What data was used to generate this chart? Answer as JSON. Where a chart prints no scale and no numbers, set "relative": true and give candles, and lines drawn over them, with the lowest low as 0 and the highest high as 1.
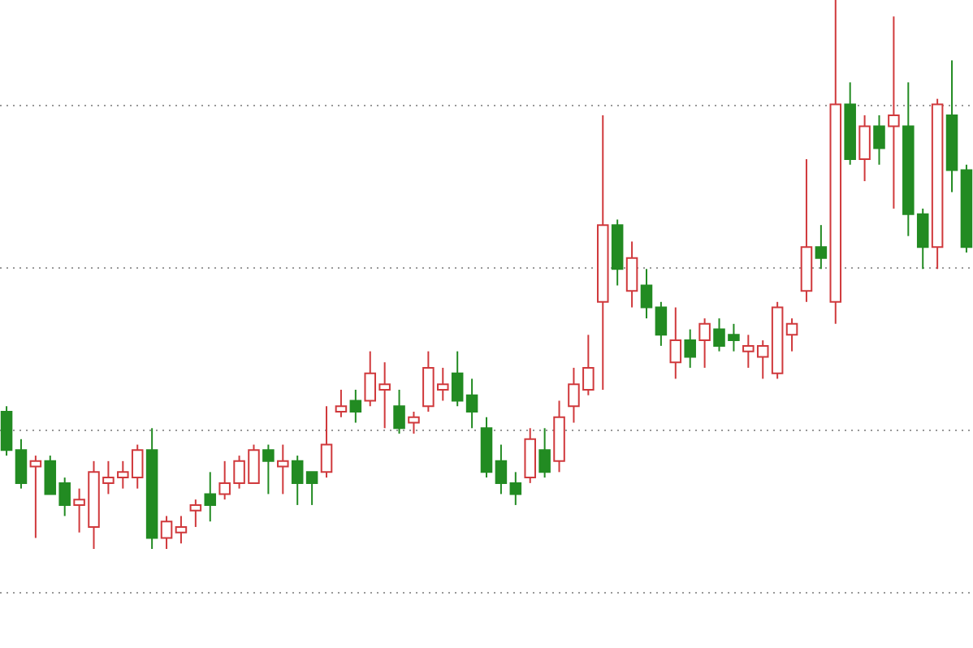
{
  "chart_data": {
    "type": "candlestick",
    "relative": true,
    "grid": "y",
    "categories": [
      null,
      null,
      null,
      null,
      null,
      null,
      null,
      null,
      null,
      null,
      null,
      null,
      null,
      null,
      null,
      null,
      null,
      null,
      null,
      null,
      null,
      null,
      null,
      null,
      null,
      null,
      null,
      null,
      null,
      null,
      null,
      null,
      null,
      null,
      null,
      null,
      null,
      null,
      null,
      null,
      null,
      null,
      null,
      null,
      null,
      null,
      null,
      null,
      null,
      null,
      null,
      null,
      null,
      null,
      null,
      null,
      null,
      null,
      null,
      null,
      null,
      null,
      null,
      null,
      null,
      null,
      null
    ],
    "ohlc": [
      [
        0.25,
        0.26,
        0.17,
        0.18
      ],
      [
        0.18,
        0.2,
        0.11,
        0.12
      ],
      [
        0.15,
        0.17,
        0.02,
        0.16
      ],
      [
        0.16,
        0.17,
        0.1,
        0.1
      ],
      [
        0.12,
        0.13,
        0.06,
        0.08
      ],
      [
        0.08,
        0.11,
        0.03,
        0.09
      ],
      [
        0.04,
        0.16,
        0,
        0.14
      ],
      [
        0.12,
        0.16,
        0.1,
        0.13
      ],
      [
        0.13,
        0.16,
        0.11,
        0.14
      ],
      [
        0.13,
        0.19,
        0.11,
        0.18
      ],
      [
        0.18,
        0.22,
        0,
        0.02
      ],
      [
        0.02,
        0.06,
        0,
        0.05
      ],
      [
        0.03,
        0.06,
        0.01,
        0.04
      ],
      [
        0.07,
        0.09,
        0.04,
        0.08
      ],
      [
        0.1,
        0.14,
        0.05,
        0.08
      ],
      [
        0.1,
        0.16,
        0.09,
        0.12
      ],
      [
        0.12,
        0.17,
        0.11,
        0.16
      ],
      [
        0.12,
        0.19,
        0.12,
        0.18
      ],
      [
        0.18,
        0.19,
        0.1,
        0.16
      ],
      [
        0.15,
        0.19,
        0.1,
        0.16
      ],
      [
        0.16,
        0.17,
        0.08,
        0.12
      ],
      [
        0.14,
        0.14,
        0.08,
        0.12
      ],
      [
        0.14,
        0.26,
        0.13,
        0.19
      ],
      [
        0.25,
        0.29,
        0.24,
        0.26
      ],
      [
        0.27,
        0.29,
        0.23,
        0.25
      ],
      [
        0.27,
        0.36,
        0.26,
        0.32
      ],
      [
        0.29,
        0.34,
        0.22,
        0.3
      ],
      [
        0.26,
        0.29,
        0.21,
        0.22
      ],
      [
        0.23,
        0.25,
        0.21,
        0.24
      ],
      [
        0.26,
        0.36,
        0.25,
        0.33
      ],
      [
        0.29,
        0.33,
        0.27,
        0.3
      ],
      [
        0.32,
        0.36,
        0.26,
        0.27
      ],
      [
        0.28,
        0.31,
        0.22,
        0.25
      ],
      [
        0.22,
        0.24,
        0.13,
        0.14
      ],
      [
        0.16,
        0.19,
        0.1,
        0.12
      ],
      [
        0.12,
        0.14,
        0.08,
        0.1
      ],
      [
        0.13,
        0.22,
        0.12,
        0.2
      ],
      [
        0.18,
        0.22,
        0.13,
        0.14
      ],
      [
        0.16,
        0.27,
        0.14,
        0.24
      ],
      [
        0.26,
        0.33,
        0.23,
        0.3
      ],
      [
        0.29,
        0.39,
        0.28,
        0.33
      ],
      [
        0.45,
        0.79,
        0.29,
        0.59
      ],
      [
        0.59,
        0.6,
        0.48,
        0.51
      ],
      [
        0.47,
        0.56,
        0.44,
        0.53
      ],
      [
        0.48,
        0.51,
        0.42,
        0.44
      ],
      [
        0.44,
        0.45,
        0.37,
        0.39
      ],
      [
        0.34,
        0.44,
        0.31,
        0.38
      ],
      [
        0.38,
        0.4,
        0.33,
        0.35
      ],
      [
        0.38,
        0.42,
        0.33,
        0.41
      ],
      [
        0.4,
        0.42,
        0.36,
        0.37
      ],
      [
        0.39,
        0.41,
        0.36,
        0.38
      ],
      [
        0.36,
        0.39,
        0.33,
        0.37
      ],
      [
        0.35,
        0.38,
        0.31,
        0.37
      ],
      [
        0.32,
        0.45,
        0.31,
        0.44
      ],
      [
        0.39,
        0.42,
        0.36,
        0.41
      ],
      [
        0.47,
        0.71,
        0.45,
        0.55
      ],
      [
        0.55,
        0.59,
        0.51,
        0.53
      ],
      [
        0.45,
        1,
        0.41,
        0.81
      ],
      [
        0.81,
        0.85,
        0.7,
        0.71
      ],
      [
        0.71,
        0.79,
        0.67,
        0.77
      ],
      [
        0.77,
        0.79,
        0.7,
        0.73
      ],
      [
        0.77,
        0.97,
        0.62,
        0.79
      ],
      [
        0.77,
        0.85,
        0.57,
        0.61
      ],
      [
        0.61,
        0.62,
        0.51,
        0.55
      ],
      [
        0.55,
        0.82,
        0.51,
        0.81
      ],
      [
        0.79,
        0.89,
        0.65,
        0.69
      ],
      [
        0.69,
        0.7,
        0.54,
        0.55
      ]
    ]
  }
}
